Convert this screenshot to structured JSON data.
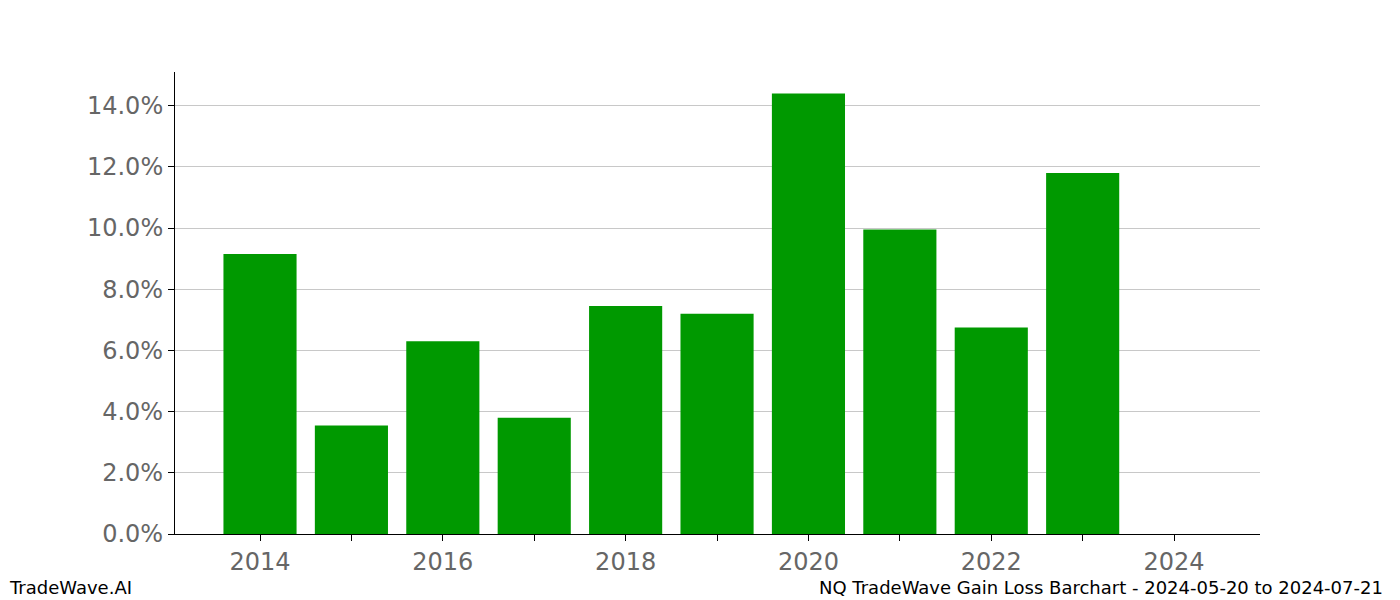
{
  "chart_data": {
    "type": "bar",
    "x": [
      2014,
      2015,
      2016,
      2017,
      2018,
      2019,
      2020,
      2021,
      2022,
      2023
    ],
    "values": [
      9.15,
      3.55,
      6.3,
      3.8,
      7.45,
      7.2,
      14.4,
      9.95,
      6.75,
      11.8
    ],
    "color": "#009900",
    "xlim": [
      2013.07,
      2024.94
    ],
    "xticks": [
      2014,
      2016,
      2018,
      2020,
      2022,
      2024
    ],
    "ylim": [
      0,
      15.1
    ],
    "yticks": [
      {
        "value": 0,
        "label": "0.0%"
      },
      {
        "value": 2,
        "label": "2.0%"
      },
      {
        "value": 4,
        "label": "4.0%"
      },
      {
        "value": 6,
        "label": "6.0%"
      },
      {
        "value": 8,
        "label": "8.0%"
      },
      {
        "value": 10,
        "label": "10.0%"
      },
      {
        "value": 12,
        "label": "12.0%"
      },
      {
        "value": 14,
        "label": "14.0%"
      }
    ],
    "grid": true,
    "annotations": [
      "TradeWave.AI",
      "NQ TradeWave Gain Loss Barchart - 2024-05-20 to 2024-07-21"
    ]
  }
}
